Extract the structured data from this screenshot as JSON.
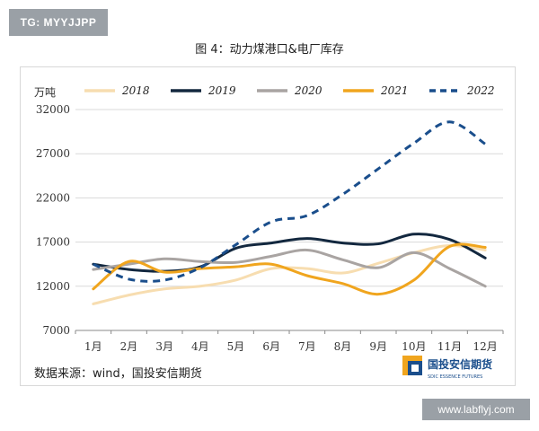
{
  "watermark_top": "TG: MYYJJPP",
  "watermark_bottom": "www.labflyj.com",
  "footer": {
    "source": "数据来源：wind，国投安信期货",
    "logo_cn": "国投安信期货",
    "logo_en": "SDIC ESSENCE FUTURES"
  },
  "chart_data": {
    "type": "line",
    "title": "图 4：动力煤港口&电厂库存",
    "ylabel": "万吨",
    "xlabel": "",
    "categories": [
      "1月",
      "2月",
      "3月",
      "4月",
      "5月",
      "6月",
      "7月",
      "8月",
      "9月",
      "10月",
      "11月",
      "12月"
    ],
    "ylim": [
      7000,
      32000
    ],
    "yticks": [
      7000,
      12000,
      17000,
      22000,
      27000,
      32000
    ],
    "grid": true,
    "legend": "top",
    "series": [
      {
        "name": "2018",
        "color": "#f7ddb0",
        "dash": "solid",
        "values": [
          10000,
          11000,
          11700,
          12000,
          12700,
          14000,
          14000,
          13500,
          14600,
          15800,
          16600,
          16100
        ]
      },
      {
        "name": "2019",
        "color": "#13283f",
        "dash": "solid",
        "values": [
          14500,
          13900,
          13700,
          14200,
          16300,
          16900,
          17400,
          16900,
          16800,
          17900,
          17300,
          15200
        ]
      },
      {
        "name": "2020",
        "color": "#a9a4a2",
        "dash": "solid",
        "values": [
          13900,
          14500,
          15100,
          14800,
          14700,
          15400,
          16100,
          15000,
          14100,
          15800,
          14000,
          12000
        ]
      },
      {
        "name": "2021",
        "color": "#f0a51e",
        "dash": "solid",
        "values": [
          11700,
          14800,
          13600,
          14000,
          14200,
          14500,
          13200,
          12300,
          11100,
          12700,
          16500,
          16400
        ]
      },
      {
        "name": "2022",
        "color": "#1a4e8c",
        "dash": "dash",
        "values": [
          14500,
          12800,
          12700,
          14100,
          16700,
          19300,
          20000,
          22400,
          25300,
          28200,
          30600,
          28100
        ]
      }
    ]
  }
}
